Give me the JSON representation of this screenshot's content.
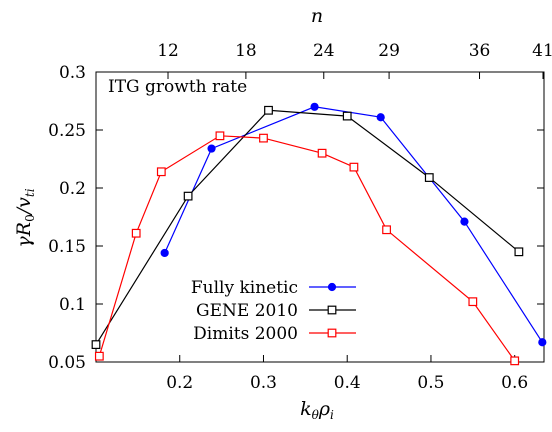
{
  "chart_data": {
    "type": "line",
    "title": "ITG growth rate",
    "xlabel": "k_θρ_i",
    "ylabel": "γR_0/v_ti",
    "top_xlabel": "n",
    "xlim": [
      0.1,
      0.635
    ],
    "ylim": [
      0.05,
      0.3
    ],
    "x_ticks": [
      "0.2",
      "0.3",
      "0.4",
      "0.5",
      "0.6"
    ],
    "y_ticks": [
      "0.05",
      "0.1",
      "0.15",
      "0.2",
      "0.25",
      "0.3"
    ],
    "top_ticks": [
      {
        "label": "12",
        "x": 0.186
      },
      {
        "label": "18",
        "x": 0.279
      },
      {
        "label": "24",
        "x": 0.372
      },
      {
        "label": "29",
        "x": 0.45
      },
      {
        "label": "36",
        "x": 0.558
      },
      {
        "label": "41",
        "x": 0.636
      }
    ],
    "grid": false,
    "legend_position": "bottom-left",
    "series": [
      {
        "name": "Fully kinetic",
        "color": "#0000ff",
        "marker": "filled-circle",
        "x": [
          0.182,
          0.238,
          0.361,
          0.44,
          0.54,
          0.633
        ],
        "y": [
          0.144,
          0.234,
          0.27,
          0.261,
          0.171,
          0.067
        ]
      },
      {
        "name": "GENE 2010",
        "color": "#000000",
        "marker": "open-square",
        "x": [
          0.1,
          0.21,
          0.306,
          0.4,
          0.498,
          0.605
        ],
        "y": [
          0.065,
          0.193,
          0.267,
          0.262,
          0.209,
          0.145
        ]
      },
      {
        "name": "Dimits 2000",
        "color": "#ff0000",
        "marker": "open-square",
        "x": [
          0.104,
          0.148,
          0.178,
          0.248,
          0.3,
          0.37,
          0.408,
          0.447,
          0.55,
          0.6
        ],
        "y": [
          0.055,
          0.161,
          0.214,
          0.245,
          0.243,
          0.23,
          0.218,
          0.164,
          0.102,
          0.051
        ]
      }
    ]
  }
}
